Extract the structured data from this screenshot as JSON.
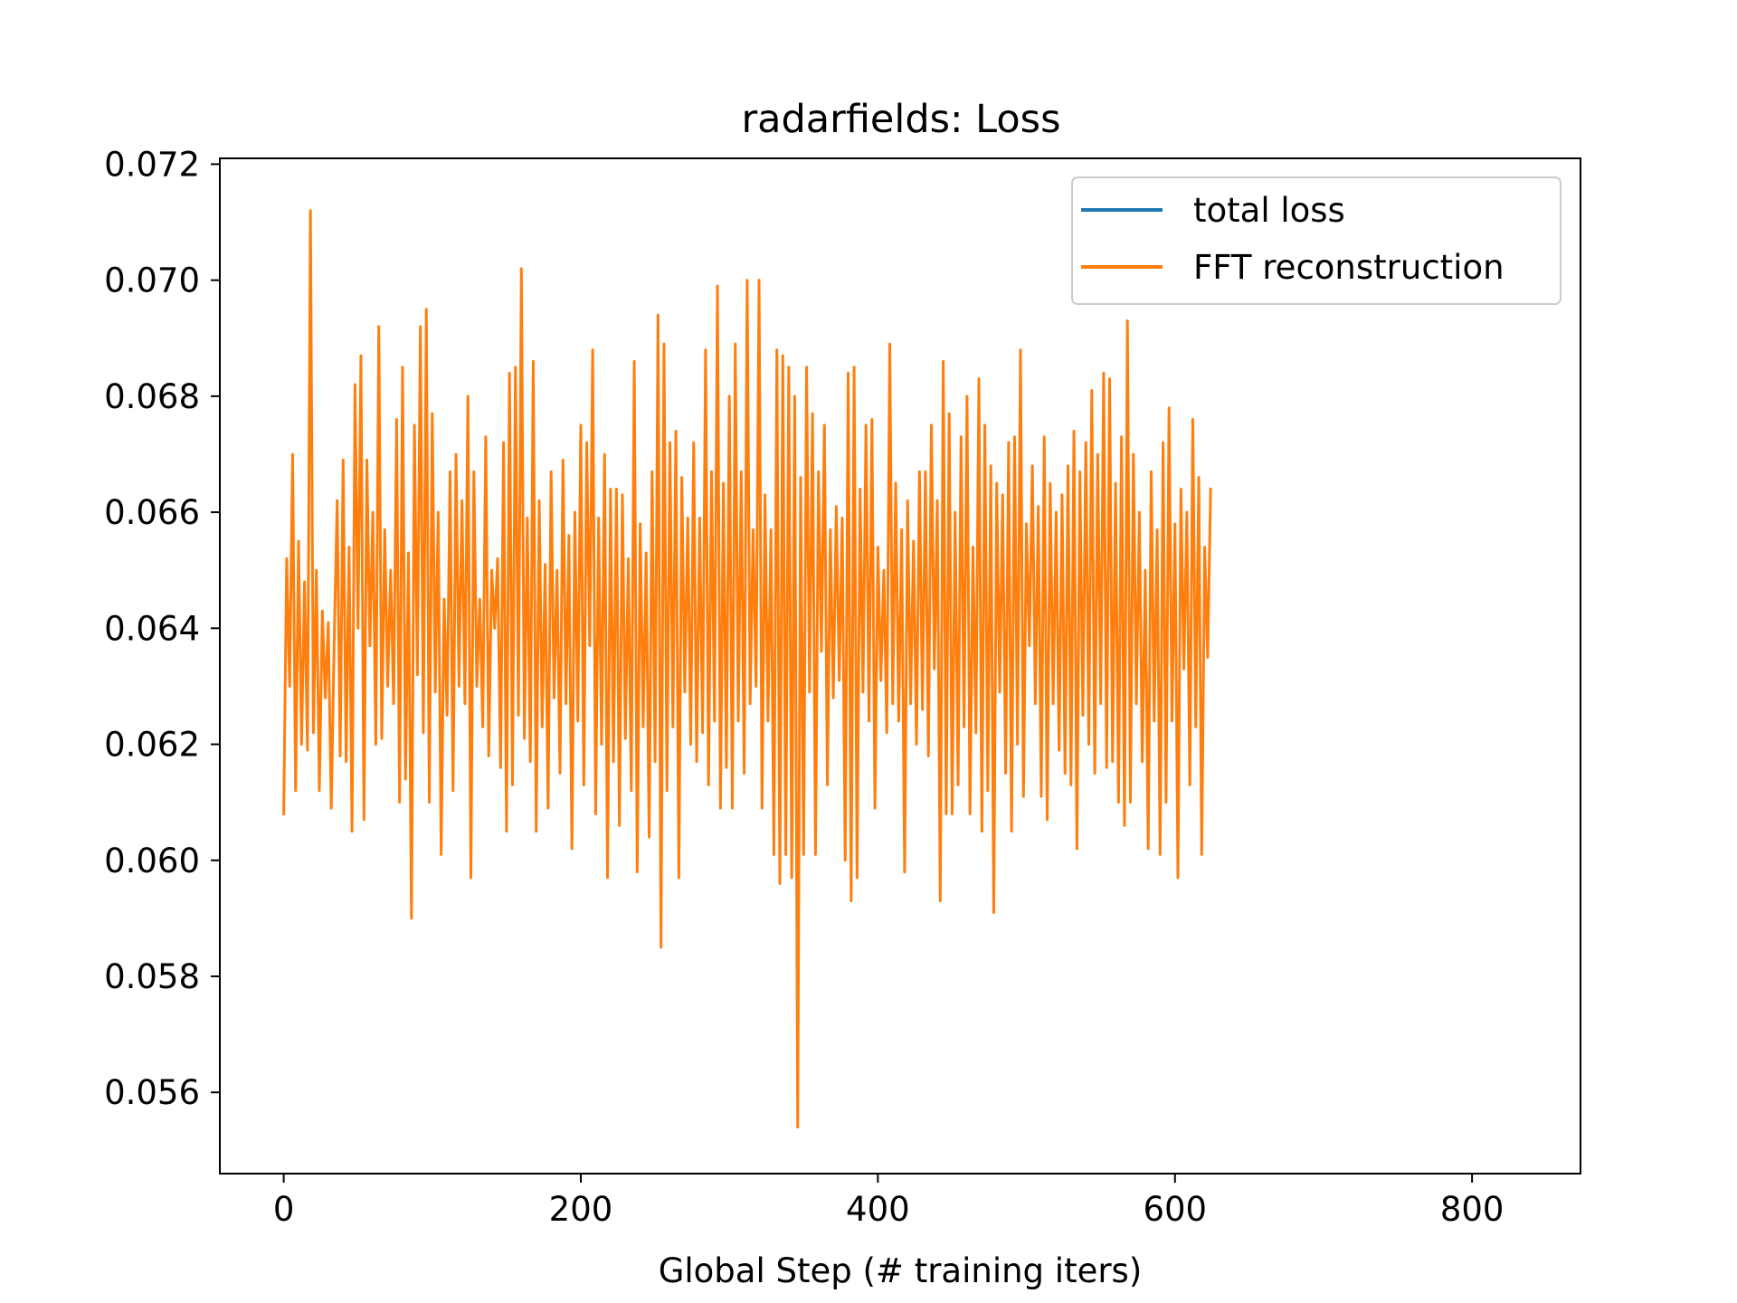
{
  "chart_data": {
    "type": "line",
    "title": "radarfields: Loss",
    "xlabel": "Global Step (# training iters)",
    "ylabel": "",
    "xlim": [
      -43,
      873
    ],
    "ylim": [
      0.0546,
      0.0721
    ],
    "xticks": [
      0,
      200,
      400,
      600,
      800
    ],
    "xtick_labels": [
      "0",
      "200",
      "400",
      "600",
      "800"
    ],
    "yticks": [
      0.056,
      0.058,
      0.06,
      0.062,
      0.064,
      0.066,
      0.068,
      0.07,
      0.072
    ],
    "ytick_labels": [
      "0.056",
      "0.058",
      "0.060",
      "0.062",
      "0.064",
      "0.066",
      "0.068",
      "0.070",
      "0.072"
    ],
    "grid": false,
    "legend_position": "top-right",
    "series": [
      {
        "name": "total loss",
        "color": "#1f77b4",
        "visible_in_plot": false
      },
      {
        "name": "FFT reconstruction",
        "color": "#ff7f0e",
        "x_start": 0,
        "x_step": 2,
        "values": [
          0.0608,
          0.0652,
          0.063,
          0.067,
          0.0612,
          0.0655,
          0.062,
          0.0648,
          0.0619,
          0.0712,
          0.0622,
          0.065,
          0.0612,
          0.0643,
          0.0628,
          0.0641,
          0.0609,
          0.0638,
          0.0662,
          0.0618,
          0.0669,
          0.0617,
          0.0654,
          0.0605,
          0.0682,
          0.064,
          0.0687,
          0.0607,
          0.0669,
          0.0637,
          0.066,
          0.062,
          0.0692,
          0.0621,
          0.0657,
          0.063,
          0.065,
          0.0627,
          0.0676,
          0.061,
          0.0685,
          0.0614,
          0.0653,
          0.059,
          0.0675,
          0.0632,
          0.0692,
          0.0622,
          0.0695,
          0.061,
          0.0677,
          0.0629,
          0.066,
          0.0601,
          0.0645,
          0.0625,
          0.0667,
          0.0612,
          0.067,
          0.063,
          0.0662,
          0.0627,
          0.068,
          0.0597,
          0.0667,
          0.063,
          0.0645,
          0.0623,
          0.0673,
          0.0618,
          0.065,
          0.064,
          0.0652,
          0.0616,
          0.0672,
          0.0605,
          0.0684,
          0.0613,
          0.0685,
          0.0625,
          0.0702,
          0.0621,
          0.0659,
          0.0617,
          0.0686,
          0.0605,
          0.0662,
          0.0623,
          0.0651,
          0.0609,
          0.0667,
          0.0628,
          0.065,
          0.0615,
          0.0669,
          0.0627,
          0.0656,
          0.0602,
          0.066,
          0.0624,
          0.0675,
          0.0613,
          0.0672,
          0.0637,
          0.0688,
          0.0608,
          0.0659,
          0.062,
          0.067,
          0.0597,
          0.0664,
          0.0617,
          0.0664,
          0.0606,
          0.0663,
          0.0621,
          0.0652,
          0.0612,
          0.0686,
          0.0598,
          0.0658,
          0.0623,
          0.0653,
          0.0604,
          0.0667,
          0.0617,
          0.0694,
          0.0585,
          0.0689,
          0.0612,
          0.0672,
          0.0623,
          0.0674,
          0.0597,
          0.0666,
          0.0629,
          0.0659,
          0.062,
          0.0672,
          0.0617,
          0.0659,
          0.0622,
          0.0688,
          0.0613,
          0.0667,
          0.0624,
          0.0699,
          0.0609,
          0.0665,
          0.0616,
          0.068,
          0.0609,
          0.0689,
          0.0624,
          0.0667,
          0.0615,
          0.07,
          0.0627,
          0.0657,
          0.063,
          0.07,
          0.0609,
          0.0663,
          0.0624,
          0.0657,
          0.0601,
          0.0688,
          0.0596,
          0.0687,
          0.0601,
          0.0685,
          0.0597,
          0.068,
          0.0554,
          0.0666,
          0.0601,
          0.0685,
          0.0629,
          0.0677,
          0.0601,
          0.0667,
          0.0636,
          0.0675,
          0.0613,
          0.0657,
          0.0628,
          0.0661,
          0.0631,
          0.0659,
          0.06,
          0.0684,
          0.0593,
          0.0685,
          0.0597,
          0.0664,
          0.0629,
          0.0675,
          0.0624,
          0.0676,
          0.0609,
          0.0654,
          0.0631,
          0.065,
          0.0622,
          0.0689,
          0.0627,
          0.0665,
          0.0624,
          0.0657,
          0.0598,
          0.0662,
          0.0627,
          0.0655,
          0.062,
          0.0667,
          0.0626,
          0.0667,
          0.0618,
          0.0675,
          0.0633,
          0.0662,
          0.0593,
          0.0686,
          0.0608,
          0.0677,
          0.0608,
          0.066,
          0.0613,
          0.0673,
          0.0623,
          0.068,
          0.0608,
          0.0654,
          0.0622,
          0.0683,
          0.0605,
          0.0675,
          0.0612,
          0.0668,
          0.0591,
          0.0665,
          0.0629,
          0.0663,
          0.0615,
          0.0672,
          0.0605,
          0.0673,
          0.062,
          0.0688,
          0.0611,
          0.0658,
          0.0637,
          0.0668,
          0.0627,
          0.0661,
          0.0611,
          0.0673,
          0.0607,
          0.0665,
          0.0627,
          0.066,
          0.0619,
          0.0663,
          0.0615,
          0.0668,
          0.0613,
          0.0674,
          0.0602,
          0.0667,
          0.0625,
          0.0672,
          0.062,
          0.0681,
          0.0615,
          0.067,
          0.0627,
          0.0684,
          0.0616,
          0.0683,
          0.0617,
          0.0665,
          0.061,
          0.0673,
          0.0606,
          0.0693,
          0.061,
          0.067,
          0.0627,
          0.066,
          0.0617,
          0.065,
          0.0602,
          0.0667,
          0.0624,
          0.0657,
          0.0601,
          0.0672,
          0.061,
          0.0678,
          0.0624,
          0.0658,
          0.0597,
          0.0664,
          0.0633,
          0.066,
          0.0613,
          0.0676,
          0.0623,
          0.0666,
          0.0601,
          0.0654,
          0.0635,
          0.0664
        ]
      }
    ]
  }
}
